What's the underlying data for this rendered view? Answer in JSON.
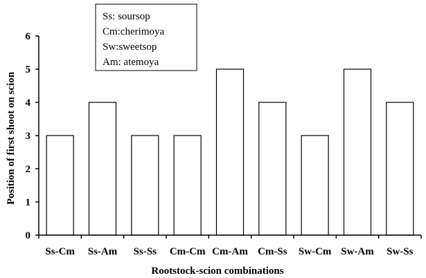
{
  "chart_data": {
    "type": "bar",
    "categories": [
      "Ss-Cm",
      "Ss-Am",
      "Ss-Ss",
      "Cm-Cm",
      "Cm-Am",
      "Cm-Ss",
      "Sw-Cm",
      "Sw-Am",
      "Sw-Ss"
    ],
    "values": [
      3,
      4,
      3,
      3,
      5,
      4,
      3,
      5,
      4
    ],
    "title": "",
    "xlabel": "Rootstock-scion combinations",
    "ylabel": "Position of first shoot on scion",
    "ylim": [
      0,
      6
    ],
    "yticks": [
      "0",
      "1",
      "2",
      "3",
      "4",
      "5",
      "6"
    ],
    "grid": false,
    "legend": {
      "placement": "top-left",
      "entries": [
        "Ss: soursop",
        "Cm:cherimoya",
        "Sw:sweetsop",
        "Am: atemoya"
      ]
    },
    "colors": {
      "bar_fill": "#ffffff",
      "bar_stroke": "#000000",
      "axis": "#000000"
    }
  }
}
